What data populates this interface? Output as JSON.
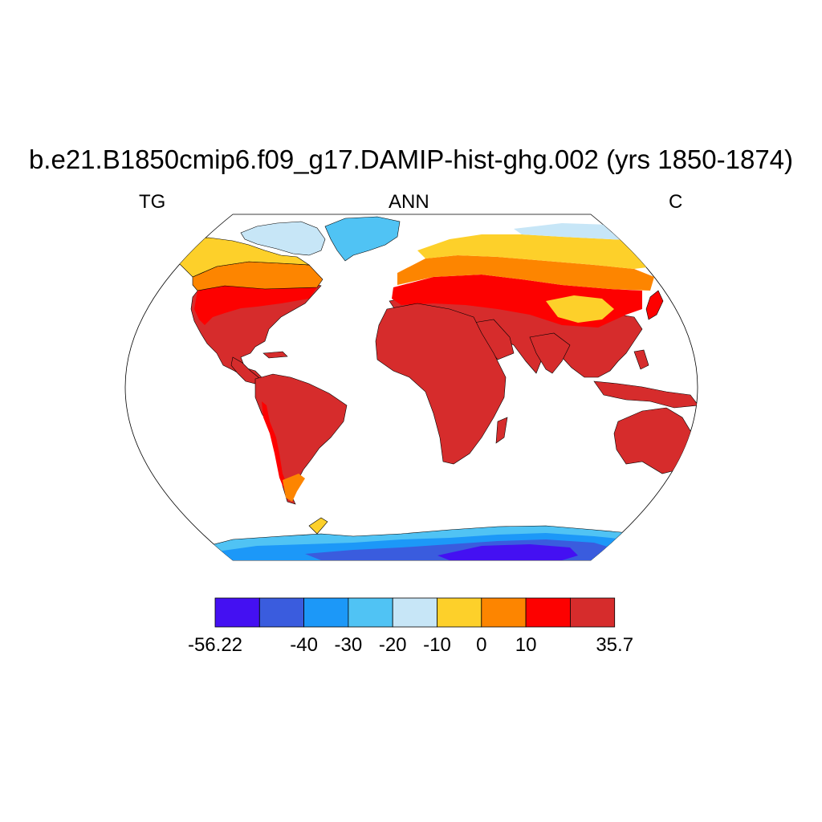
{
  "title": "b.e21.B1850cmip6.f09_g17.DAMIP-hist-ghg.002 (yrs 1850-1874)",
  "left_label": "TG",
  "center_label": "ANN",
  "right_label": "C",
  "colorbar": {
    "colors": [
      "#4410f2",
      "#3a5cde",
      "#1c98f8",
      "#50c3f4",
      "#c7e6f7",
      "#fdd02a",
      "#fd8500",
      "#fd0100",
      "#d62c2c"
    ],
    "labels": [
      "-56.22",
      "",
      "-40",
      "-30",
      "-20",
      "-10",
      "0",
      "10",
      "",
      "35.7"
    ]
  },
  "regions": [
    {
      "name": "greenland",
      "color": "#50c3f4"
    },
    {
      "name": "canadian-arctic-islands",
      "color": "#c7e6f7"
    },
    {
      "name": "siberia-arctic",
      "color": "#c7e6f7"
    },
    {
      "name": "north-america",
      "color": "#d62c2c"
    },
    {
      "name": "south-america",
      "color": "#d62c2c"
    },
    {
      "name": "africa",
      "color": "#d62c2c"
    },
    {
      "name": "eurasia",
      "color": "#d62c2c"
    },
    {
      "name": "australia",
      "color": "#d62c2c"
    },
    {
      "name": "antarctica",
      "color": "#1c98f8"
    }
  ]
}
